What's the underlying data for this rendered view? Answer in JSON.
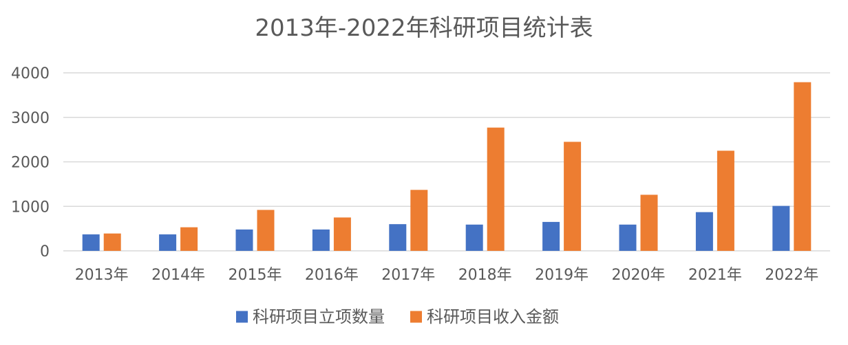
{
  "chart_data": {
    "type": "bar",
    "title": "2013年-2022年科研项目统计表",
    "xlabel": "",
    "ylabel": "",
    "categories": [
      "2013年",
      "2014年",
      "2015年",
      "2016年",
      "2017年",
      "2018年",
      "2019年",
      "2020年",
      "2021年",
      "2022年"
    ],
    "series": [
      {
        "name": "科研项目立项数量",
        "color": "#4472C4",
        "values": [
          370,
          370,
          480,
          480,
          600,
          590,
          650,
          590,
          870,
          1010
        ]
      },
      {
        "name": "科研项目收入金额",
        "color": "#ED7D31",
        "values": [
          390,
          530,
          920,
          750,
          1370,
          2770,
          2450,
          1260,
          2250,
          3790
        ]
      }
    ],
    "ylim": [
      0,
      4000
    ],
    "yticks": [
      0,
      1000,
      2000,
      3000,
      4000
    ],
    "grid": true,
    "legend": "bottom"
  }
}
